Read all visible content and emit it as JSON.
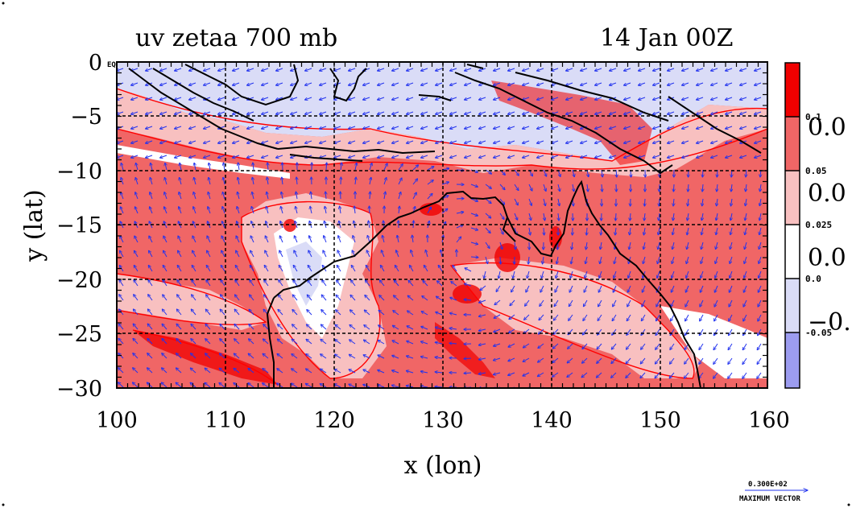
{
  "title_left": "uv zetaa 700 mb",
  "title_right": "14 Jan 00Z",
  "xlabel": "x (lon)",
  "ylabel": "y (lat)",
  "chart_data": {
    "type": "heatmap",
    "title": "uv zetaa 700 mb",
    "time": "14 Jan 00Z",
    "xlabel": "x (lon)",
    "ylabel": "y (lat)",
    "xlim": [
      100,
      160
    ],
    "ylim": [
      -30,
      0
    ],
    "x_ticks": [
      100,
      110,
      120,
      130,
      140,
      150,
      160
    ],
    "y_ticks": [
      0,
      -5,
      -10,
      -15,
      -20,
      -25,
      -30
    ],
    "y_tick_labels": [
      "0",
      "−5",
      "−10",
      "−15",
      "−20",
      "−25",
      "−30"
    ],
    "eq_label": "EQ",
    "grid": true,
    "overlay": "wind vectors (u,v) with coastlines",
    "colorbar": {
      "levels_labels": [
        "0.1",
        "0.05",
        "0.025",
        "0.0",
        "-0.05"
      ],
      "right_labels": [
        "0.0",
        "0.0",
        "0.0",
        "−0."
      ],
      "colors": [
        "#f00000",
        "#f06666",
        "#f8c0c0",
        "#ffffff",
        "#dadcf7",
        "#9c9cf0"
      ]
    },
    "max_vector_value": "0.300E+02",
    "max_vector_label": "MAXIMUM VECTOR"
  },
  "colors": {
    "vector": "#2233ee",
    "contour": "#ff0000",
    "coast": "#000000"
  }
}
